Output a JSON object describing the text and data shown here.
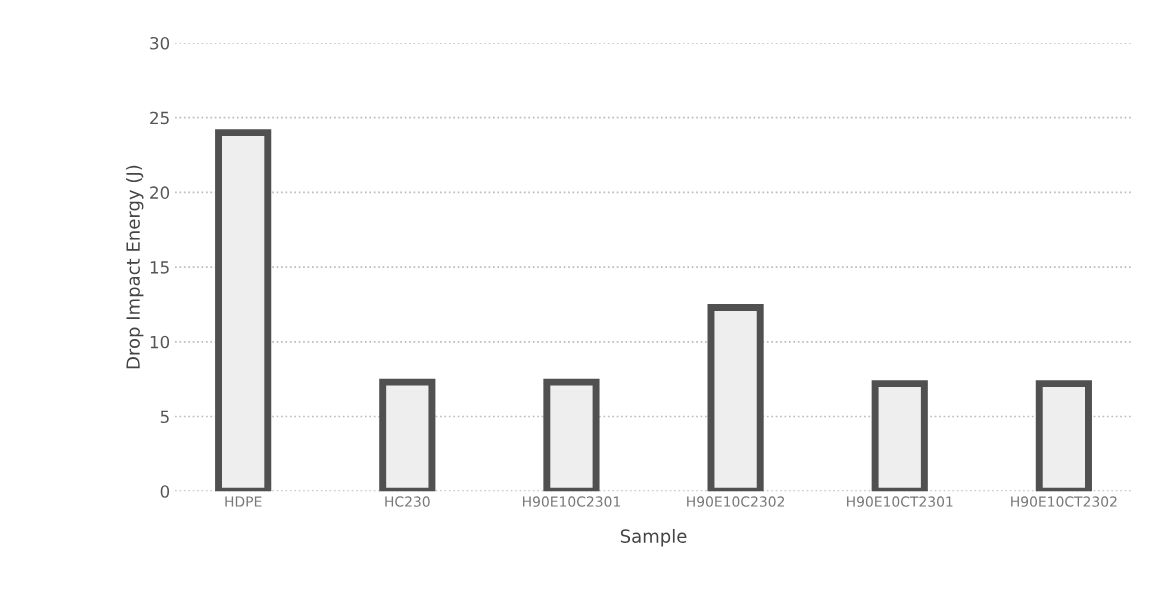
{
  "chart_data": {
    "type": "bar",
    "xlabel": "Sample",
    "ylabel": "Drop Impact Energy (J)",
    "categories": [
      "HDPE",
      "HC230",
      "H90E10C2301",
      "H90E10C2302",
      "H90E10CT2301",
      "H90E10CT2302"
    ],
    "values": [
      24,
      7.3,
      7.3,
      12.3,
      7.2,
      7.2
    ],
    "color": "#eeeeee",
    "ylim": [
      0,
      30
    ],
    "yticks": [
      0,
      5,
      10,
      15,
      20,
      25,
      30
    ],
    "grid": "y",
    "legend": false
  }
}
